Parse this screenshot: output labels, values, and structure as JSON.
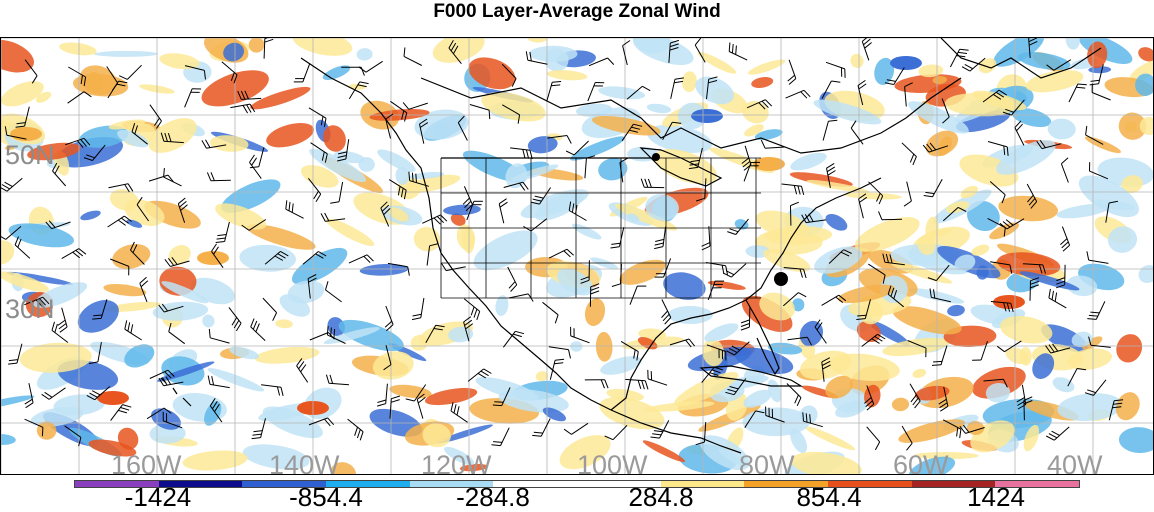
{
  "title": "F000 Layer-Average Zonal Wind",
  "lat_labels": [
    "50N",
    "30N"
  ],
  "lon_labels": [
    "160W",
    "140W",
    "120W",
    "100W",
    "80W",
    "60W",
    "40W"
  ],
  "colorbar": {
    "colors": [
      "#8a3fbf",
      "#0c0c8c",
      "#2f5fd0",
      "#1eaef0",
      "#a8dcf5",
      "#ffffff",
      "#ffffff",
      "#ffe88a",
      "#f3a127",
      "#e8501b",
      "#a52323",
      "#e8719e"
    ],
    "labels": [
      "-1424",
      "-854.4",
      "-284.8",
      "284.8",
      "854.4",
      "1424"
    ]
  },
  "markers": {
    "dots": [
      "north-shore-lake-superior",
      "north-carolina-coast"
    ]
  }
}
